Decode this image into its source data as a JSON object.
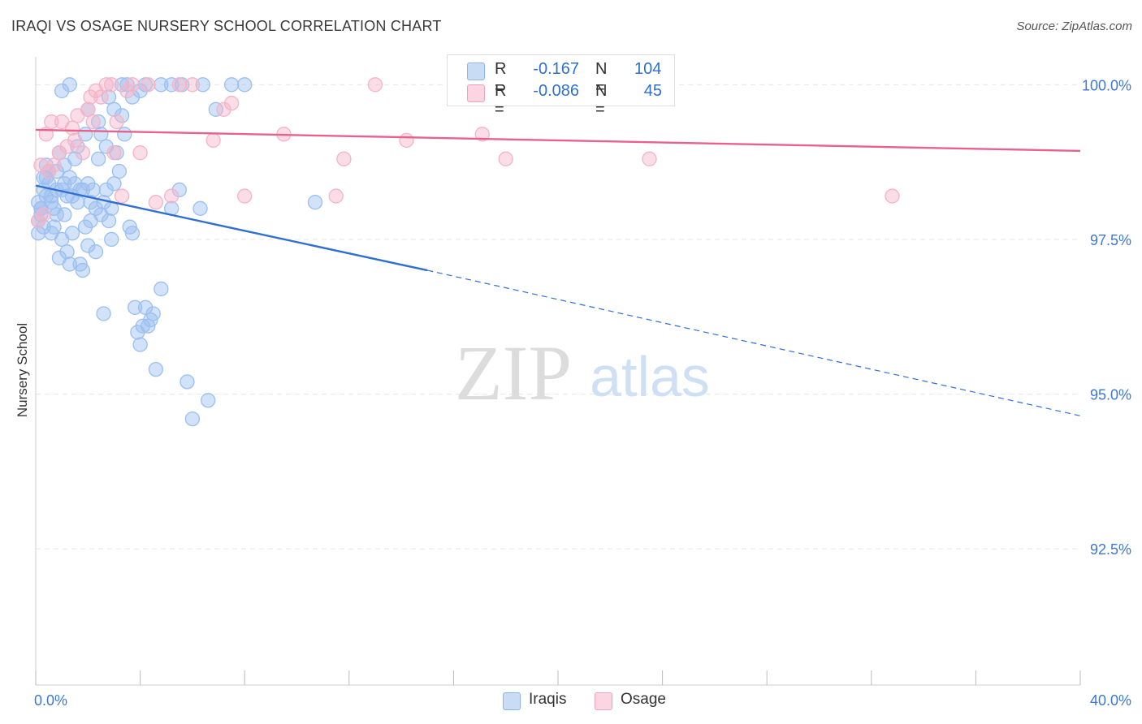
{
  "header": {
    "title": "IRAQI VS OSAGE NURSERY SCHOOL CORRELATION CHART",
    "source": "Source: ZipAtlas.com"
  },
  "watermark": {
    "zip": "ZIP",
    "atlas": "atlas"
  },
  "legend_top": {
    "rows": [
      {
        "r_label": "R =",
        "r_value": "-0.167",
        "n_label": "N =",
        "n_value": "104",
        "color": "#9bbff0"
      },
      {
        "r_label": "R =",
        "r_value": "-0.086",
        "n_label": "N =",
        "n_value": "45",
        "color": "#f5b3c8"
      }
    ]
  },
  "legend_bottom": {
    "items": [
      {
        "label": "Iraqis",
        "color": "#9bbff0"
      },
      {
        "label": "Osage",
        "color": "#f5b3c8"
      }
    ]
  },
  "chart_data": {
    "type": "scatter",
    "title": "IRAQI VS OSAGE NURSERY SCHOOL CORRELATION CHART",
    "xlabel": "",
    "ylabel": "Nursery School",
    "xlim": [
      0,
      40
    ],
    "ylim": [
      90.3,
      100.45
    ],
    "x_tick_labels": [
      "0.0%",
      "40.0%"
    ],
    "y_ticks": [
      100.0,
      97.5,
      95.0,
      92.5
    ],
    "y_tick_labels": [
      "100.0%",
      "97.5%",
      "95.0%",
      "92.5%"
    ],
    "grid": true,
    "series": [
      {
        "name": "Iraqis",
        "color": "#2f6fd1",
        "fill": "#9bbff0",
        "trend": {
          "x0": 0,
          "y0": 98.37,
          "x1": 15.0,
          "y1": 97.0,
          "dashed_to_x": 40,
          "dashed_to_y": 94.65
        },
        "points": [
          [
            0.1,
            98.1
          ],
          [
            0.1,
            97.8
          ],
          [
            0.1,
            97.6
          ],
          [
            0.2,
            97.9
          ],
          [
            0.2,
            98.0
          ],
          [
            0.3,
            98.3
          ],
          [
            0.3,
            97.7
          ],
          [
            0.4,
            98.5
          ],
          [
            0.4,
            98.2
          ],
          [
            0.5,
            98.4
          ],
          [
            0.6,
            98.2
          ],
          [
            0.6,
            97.6
          ],
          [
            0.7,
            98.0
          ],
          [
            0.8,
            98.6
          ],
          [
            0.8,
            97.9
          ],
          [
            0.9,
            97.2
          ],
          [
            1.0,
            98.3
          ],
          [
            1.0,
            97.5
          ],
          [
            1.1,
            98.7
          ],
          [
            1.1,
            97.9
          ],
          [
            1.2,
            98.2
          ],
          [
            1.2,
            97.3
          ],
          [
            1.3,
            98.5
          ],
          [
            1.4,
            98.2
          ],
          [
            1.4,
            97.6
          ],
          [
            1.5,
            98.8
          ],
          [
            1.5,
            98.4
          ],
          [
            1.6,
            98.1
          ],
          [
            1.7,
            97.1
          ],
          [
            1.8,
            98.3
          ],
          [
            1.8,
            97.0
          ],
          [
            1.9,
            97.7
          ],
          [
            2.0,
            98.4
          ],
          [
            2.0,
            97.4
          ],
          [
            2.1,
            98.1
          ],
          [
            2.2,
            98.3
          ],
          [
            2.3,
            98.0
          ],
          [
            2.4,
            98.8
          ],
          [
            2.5,
            97.9
          ],
          [
            2.6,
            98.1
          ],
          [
            2.7,
            98.3
          ],
          [
            2.8,
            97.8
          ],
          [
            2.9,
            98.0
          ],
          [
            3.0,
            98.4
          ],
          [
            3.1,
            98.9
          ],
          [
            3.2,
            98.6
          ],
          [
            3.3,
            99.5
          ],
          [
            3.4,
            99.2
          ],
          [
            3.6,
            97.7
          ],
          [
            3.7,
            97.6
          ],
          [
            3.8,
            96.4
          ],
          [
            3.9,
            96.0
          ],
          [
            4.0,
            95.8
          ],
          [
            4.1,
            96.1
          ],
          [
            4.2,
            96.4
          ],
          [
            4.3,
            96.1
          ],
          [
            4.4,
            96.2
          ],
          [
            4.5,
            96.3
          ],
          [
            4.6,
            95.4
          ],
          [
            4.8,
            96.7
          ],
          [
            5.2,
            98.0
          ],
          [
            5.5,
            98.3
          ],
          [
            5.8,
            95.2
          ],
          [
            6.0,
            94.6
          ],
          [
            6.3,
            98.0
          ],
          [
            6.6,
            94.9
          ],
          [
            0.2,
            98.0
          ],
          [
            1.0,
            99.9
          ],
          [
            1.3,
            100.0
          ],
          [
            2.0,
            99.6
          ],
          [
            2.4,
            99.4
          ],
          [
            2.5,
            99.2
          ],
          [
            2.7,
            99.0
          ],
          [
            2.8,
            99.8
          ],
          [
            3.0,
            99.6
          ],
          [
            3.3,
            100.0
          ],
          [
            3.5,
            100.0
          ],
          [
            3.7,
            99.8
          ],
          [
            4.0,
            99.9
          ],
          [
            4.2,
            100.0
          ],
          [
            4.8,
            100.0
          ],
          [
            5.2,
            100.0
          ],
          [
            5.6,
            100.0
          ],
          [
            6.4,
            100.0
          ],
          [
            6.9,
            99.6
          ],
          [
            7.5,
            100.0
          ],
          [
            8.0,
            100.0
          ],
          [
            10.7,
            98.1
          ],
          [
            0.5,
            98.6
          ],
          [
            0.9,
            98.9
          ],
          [
            1.6,
            99.0
          ],
          [
            1.9,
            99.2
          ],
          [
            0.3,
            98.5
          ],
          [
            0.7,
            97.7
          ],
          [
            1.3,
            97.1
          ],
          [
            2.1,
            97.8
          ],
          [
            2.3,
            97.3
          ],
          [
            2.6,
            96.3
          ],
          [
            0.4,
            98.7
          ],
          [
            0.8,
            98.3
          ],
          [
            1.1,
            98.4
          ],
          [
            1.7,
            98.3
          ],
          [
            2.9,
            97.5
          ],
          [
            0.6,
            98.1
          ]
        ]
      },
      {
        "name": "Osage",
        "color": "#e8618c",
        "fill": "#f5b3c8",
        "trend": {
          "x0": 0,
          "y0": 99.27,
          "x1": 40,
          "y1": 98.93
        },
        "points": [
          [
            0.1,
            97.8
          ],
          [
            0.2,
            98.7
          ],
          [
            0.3,
            97.9
          ],
          [
            0.4,
            99.2
          ],
          [
            0.5,
            98.6
          ],
          [
            0.7,
            98.7
          ],
          [
            0.9,
            98.9
          ],
          [
            1.0,
            99.4
          ],
          [
            1.2,
            99.0
          ],
          [
            1.4,
            99.3
          ],
          [
            1.6,
            99.5
          ],
          [
            1.8,
            98.9
          ],
          [
            2.0,
            99.6
          ],
          [
            2.1,
            99.8
          ],
          [
            2.3,
            99.9
          ],
          [
            2.5,
            99.8
          ],
          [
            2.7,
            100.0
          ],
          [
            2.9,
            100.0
          ],
          [
            3.1,
            99.4
          ],
          [
            3.3,
            98.2
          ],
          [
            3.5,
            99.9
          ],
          [
            3.7,
            100.0
          ],
          [
            4.0,
            98.9
          ],
          [
            4.3,
            100.0
          ],
          [
            4.6,
            98.1
          ],
          [
            5.2,
            98.2
          ],
          [
            5.5,
            100.0
          ],
          [
            6.0,
            100.0
          ],
          [
            6.8,
            99.1
          ],
          [
            7.2,
            99.6
          ],
          [
            7.5,
            99.7
          ],
          [
            8.0,
            98.2
          ],
          [
            9.5,
            99.2
          ],
          [
            11.5,
            98.2
          ],
          [
            11.8,
            98.8
          ],
          [
            13.0,
            100.0
          ],
          [
            14.2,
            99.1
          ],
          [
            17.1,
            99.2
          ],
          [
            18.0,
            98.8
          ],
          [
            23.5,
            98.8
          ],
          [
            32.8,
            98.2
          ],
          [
            2.2,
            99.4
          ],
          [
            3.0,
            98.9
          ],
          [
            0.6,
            99.4
          ],
          [
            1.5,
            99.1
          ]
        ]
      }
    ]
  }
}
